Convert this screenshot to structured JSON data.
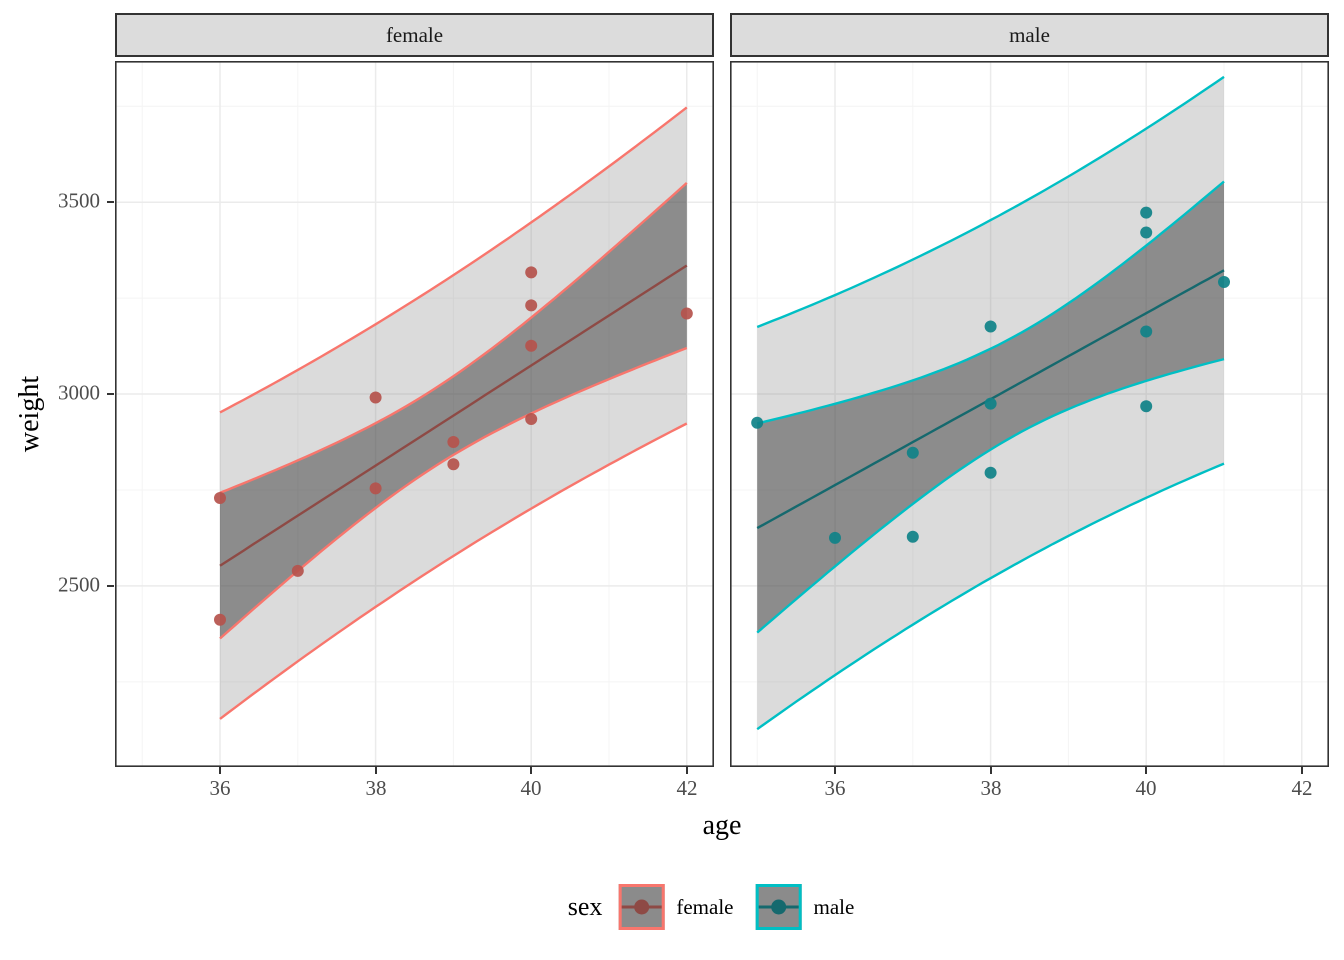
{
  "figure": {
    "kind": "ggplot-faceted-scatter-with-lm-bands",
    "background": "#ffffff",
    "strip_fill": "#dcdcdc",
    "panel_border_color": "#333333",
    "grid_major_color": "#ebebeb",
    "grid_minor_color": "#f4f4f4",
    "band_outer_fill": "#dbdbdb",
    "band_inner_fill": "#8b8b8b"
  },
  "axes": {
    "x": {
      "title": "age",
      "tick_labels": [
        "36",
        "38",
        "40",
        "42"
      ],
      "ticks": [
        36,
        38,
        40,
        42
      ],
      "minor": [
        35,
        37,
        39,
        41
      ],
      "domain": [
        34.65,
        42.35
      ]
    },
    "y": {
      "title": "weight",
      "tick_labels": [
        "2500",
        "3000",
        "3500"
      ],
      "ticks": [
        2500,
        3000,
        3500
      ],
      "minor": [
        2250,
        2750,
        3250,
        3750
      ],
      "domain": [
        2028,
        3868
      ]
    }
  },
  "legend": {
    "title": "sex",
    "entries": [
      {
        "label": "female",
        "edge_color": "#F8766D",
        "mark_color": "#8e4a45",
        "key_fill": "#8b8b8b"
      },
      {
        "label": "male",
        "edge_color": "#00BFC4",
        "mark_color": "#15696e",
        "key_fill": "#8b8b8b"
      }
    ]
  },
  "chart_data": {
    "type": "scatter",
    "smoother": "lm",
    "bands": [
      "confidence-95",
      "prediction-95"
    ],
    "t_multiplier": 2.2281,
    "xlabel": "age",
    "ylabel": "weight",
    "x_domain": [
      34.65,
      42.35
    ],
    "y_domain": [
      2028,
      3868
    ],
    "facets": [
      {
        "label": "female",
        "edge_color": "#F8766D",
        "line_color": "#8e4a45",
        "point_color": "#b5534c",
        "points": [
          [
            40,
            3317
          ],
          [
            36,
            2729
          ],
          [
            40,
            2935
          ],
          [
            38,
            2754
          ],
          [
            42,
            3210
          ],
          [
            39,
            2817
          ],
          [
            40,
            3126
          ],
          [
            37,
            2539
          ],
          [
            36,
            2412
          ],
          [
            38,
            2991
          ],
          [
            39,
            2875
          ],
          [
            40,
            3231
          ]
        ],
        "fit": {
          "intercept": -2141.667,
          "slope": 130.4,
          "sigma": 157.71,
          "xbar": 38.75,
          "sxx": 36.25,
          "n": 12,
          "xmin": 36,
          "xmax": 42
        }
      },
      {
        "label": "male",
        "edge_color": "#00BFC4",
        "line_color": "#15696e",
        "point_color": "#0f8288",
        "points": [
          [
            40,
            2968
          ],
          [
            38,
            2795
          ],
          [
            40,
            3163
          ],
          [
            35,
            2925
          ],
          [
            36,
            2625
          ],
          [
            37,
            2847
          ],
          [
            41,
            3292
          ],
          [
            40,
            3473
          ],
          [
            37,
            2628
          ],
          [
            38,
            3176
          ],
          [
            40,
            3421
          ],
          [
            38,
            2975
          ]
        ],
        "fit": {
          "intercept": -1268.682,
          "slope": 111.983,
          "sigma": 200.92,
          "xbar": 38.3333,
          "sxx": 38.6667,
          "n": 12,
          "xmin": 35,
          "xmax": 41
        }
      }
    ]
  }
}
